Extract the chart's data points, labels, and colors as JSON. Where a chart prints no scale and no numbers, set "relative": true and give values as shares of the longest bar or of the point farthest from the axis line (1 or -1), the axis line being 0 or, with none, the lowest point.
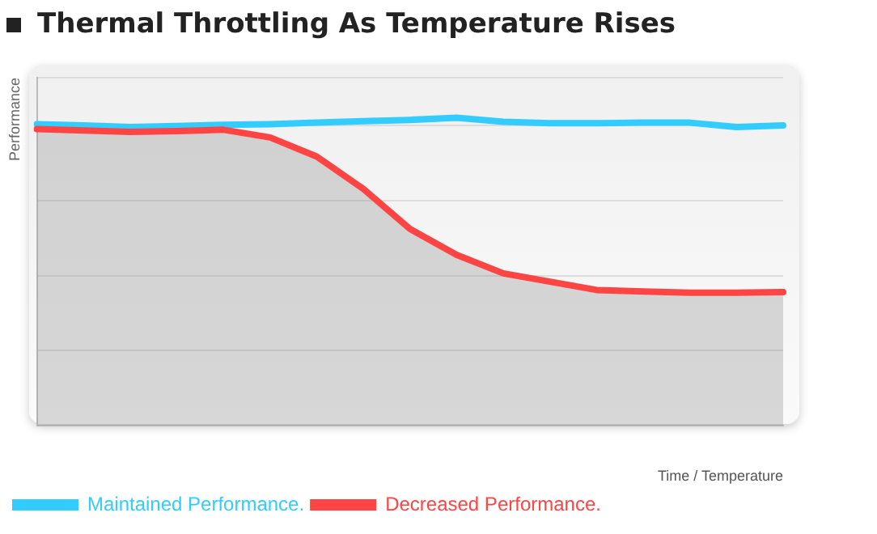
{
  "chart_data": {
    "type": "line",
    "title": "Thermal Throttling  As Temperature Rises",
    "xlabel": "Time / Temperature",
    "ylabel": "Performance",
    "relative": true,
    "grid": "y",
    "legend": "bottom",
    "marker": "none",
    "line_style": "solid",
    "categories": [
      null,
      null,
      null,
      null,
      null,
      null,
      null,
      null,
      null,
      null,
      null,
      null,
      null,
      null,
      null,
      null,
      null
    ],
    "series": [
      {
        "name": "Maintained Performance.",
        "color": "#33ccff",
        "values": [
          0.979,
          0.975,
          0.97,
          0.973,
          0.977,
          0.979,
          0.984,
          0.989,
          0.993,
          1.0,
          0.987,
          0.982,
          0.982,
          0.984,
          0.984,
          0.97,
          0.975
        ]
      },
      {
        "name": "Decreased Performance.",
        "type": "area",
        "color": "#ff4444",
        "values": [
          0.963,
          0.959,
          0.954,
          0.957,
          0.961,
          0.936,
          0.874,
          0.769,
          0.639,
          0.555,
          0.495,
          0.468,
          0.441,
          0.436,
          0.432,
          0.432,
          0.434
        ]
      }
    ]
  }
}
